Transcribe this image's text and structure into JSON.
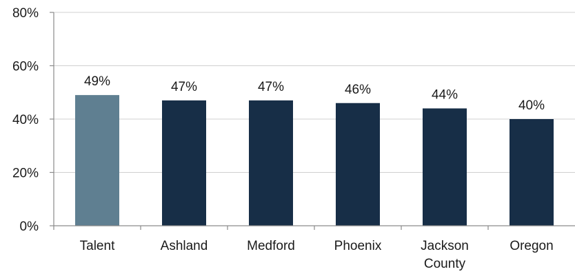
{
  "chart_data": {
    "type": "bar",
    "title": "",
    "xlabel": "",
    "ylabel": "",
    "categories": [
      [
        "Talent"
      ],
      [
        "Ashland"
      ],
      [
        "Medford"
      ],
      [
        "Phoenix"
      ],
      [
        "Jackson",
        "County"
      ],
      [
        "Oregon"
      ]
    ],
    "values": [
      49,
      47,
      47,
      46,
      44,
      40
    ],
    "data_labels": [
      "49%",
      "47%",
      "47%",
      "46%",
      "44%",
      "40%"
    ],
    "ylim": [
      0,
      80
    ],
    "yticks": [
      0,
      20,
      40,
      60,
      80
    ],
    "ytick_labels": [
      "0%",
      "20%",
      "40%",
      "60%",
      "80%"
    ],
    "grid": "horizontal",
    "legend": "none",
    "colors": {
      "highlight": "#5f7f91",
      "bar": "#172e47",
      "grid": "#d0d0d0",
      "axis": "#8a8a8a"
    },
    "highlight_index": 0
  }
}
